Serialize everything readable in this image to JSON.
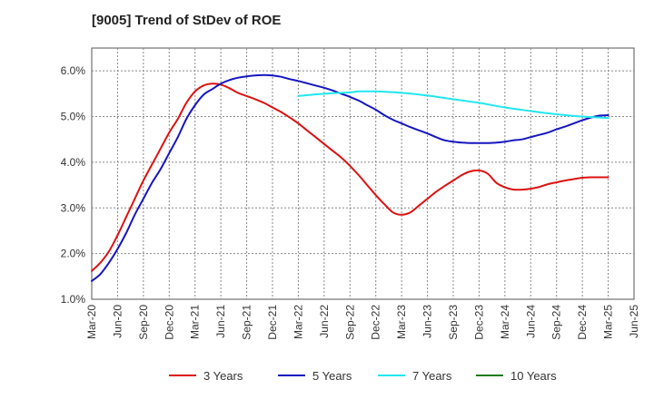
{
  "title": "[9005]  Trend of StDev of ROE",
  "chart_data": {
    "type": "line",
    "title": "[9005]  Trend of StDev of ROE",
    "xlabel": "",
    "ylabel": "",
    "x_ticks": [
      "Mar-20",
      "Jun-20",
      "Sep-20",
      "Dec-20",
      "Mar-21",
      "Jun-21",
      "Sep-21",
      "Dec-21",
      "Mar-22",
      "Jun-22",
      "Sep-22",
      "Dec-22",
      "Mar-23",
      "Jun-23",
      "Sep-23",
      "Dec-23",
      "Mar-24",
      "Jun-24",
      "Sep-24",
      "Dec-24",
      "Mar-25",
      "Jun-25"
    ],
    "y_ticks": [
      "1.0%",
      "2.0%",
      "3.0%",
      "4.0%",
      "5.0%",
      "6.0%"
    ],
    "ylim": [
      1.0,
      6.5
    ],
    "grid": true,
    "legend_position": "bottom",
    "series": [
      {
        "name": "3 Years",
        "color": "#dd1111",
        "points": [
          [
            "Mar-20",
            1.62
          ],
          [
            "Apr-20",
            1.8
          ],
          [
            "May-20",
            2.05
          ],
          [
            "Jun-20",
            2.4
          ],
          [
            "Jul-20",
            2.8
          ],
          [
            "Aug-20",
            3.2
          ],
          [
            "Sep-20",
            3.6
          ],
          [
            "Oct-20",
            3.95
          ],
          [
            "Nov-20",
            4.3
          ],
          [
            "Dec-20",
            4.65
          ],
          [
            "Jan-21",
            4.95
          ],
          [
            "Feb-21",
            5.3
          ],
          [
            "Mar-21",
            5.55
          ],
          [
            "Apr-21",
            5.68
          ],
          [
            "May-21",
            5.72
          ],
          [
            "Jun-21",
            5.7
          ],
          [
            "Jul-21",
            5.62
          ],
          [
            "Aug-21",
            5.52
          ],
          [
            "Sep-21",
            5.45
          ],
          [
            "Oct-21",
            5.38
          ],
          [
            "Nov-21",
            5.3
          ],
          [
            "Dec-21",
            5.2
          ],
          [
            "Jan-22",
            5.1
          ],
          [
            "Feb-22",
            4.98
          ],
          [
            "Mar-22",
            4.85
          ],
          [
            "Apr-22",
            4.7
          ],
          [
            "May-22",
            4.55
          ],
          [
            "Jun-22",
            4.4
          ],
          [
            "Jul-22",
            4.25
          ],
          [
            "Aug-22",
            4.1
          ],
          [
            "Sep-22",
            3.92
          ],
          [
            "Oct-22",
            3.72
          ],
          [
            "Nov-22",
            3.5
          ],
          [
            "Dec-22",
            3.28
          ],
          [
            "Jan-23",
            3.08
          ],
          [
            "Feb-23",
            2.9
          ],
          [
            "Mar-23",
            2.85
          ],
          [
            "Apr-23",
            2.9
          ],
          [
            "May-23",
            3.05
          ],
          [
            "Jun-23",
            3.2
          ],
          [
            "Jul-23",
            3.35
          ],
          [
            "Aug-23",
            3.48
          ],
          [
            "Sep-23",
            3.6
          ],
          [
            "Oct-23",
            3.72
          ],
          [
            "Nov-23",
            3.8
          ],
          [
            "Dec-23",
            3.82
          ],
          [
            "Jan-24",
            3.75
          ],
          [
            "Feb-24",
            3.55
          ],
          [
            "Mar-24",
            3.45
          ],
          [
            "Apr-24",
            3.4
          ],
          [
            "May-24",
            3.4
          ],
          [
            "Jun-24",
            3.42
          ],
          [
            "Jul-24",
            3.46
          ],
          [
            "Aug-24",
            3.52
          ],
          [
            "Sep-24",
            3.56
          ],
          [
            "Oct-24",
            3.6
          ],
          [
            "Nov-24",
            3.63
          ],
          [
            "Dec-24",
            3.66
          ],
          [
            "Jan-25",
            3.67
          ],
          [
            "Feb-25",
            3.67
          ],
          [
            "Mar-25",
            3.67
          ]
        ]
      },
      {
        "name": "5 Years",
        "color": "#1515c0",
        "points": [
          [
            "Mar-20",
            1.4
          ],
          [
            "Apr-20",
            1.55
          ],
          [
            "May-20",
            1.8
          ],
          [
            "Jun-20",
            2.1
          ],
          [
            "Jul-20",
            2.45
          ],
          [
            "Aug-20",
            2.85
          ],
          [
            "Sep-20",
            3.2
          ],
          [
            "Oct-20",
            3.55
          ],
          [
            "Nov-20",
            3.85
          ],
          [
            "Dec-20",
            4.2
          ],
          [
            "Jan-21",
            4.55
          ],
          [
            "Feb-21",
            4.95
          ],
          [
            "Mar-21",
            5.25
          ],
          [
            "Apr-21",
            5.48
          ],
          [
            "May-21",
            5.6
          ],
          [
            "Jun-21",
            5.72
          ],
          [
            "Jul-21",
            5.8
          ],
          [
            "Aug-21",
            5.85
          ],
          [
            "Sep-21",
            5.88
          ],
          [
            "Oct-21",
            5.9
          ],
          [
            "Nov-21",
            5.91
          ],
          [
            "Dec-21",
            5.9
          ],
          [
            "Jan-22",
            5.87
          ],
          [
            "Feb-22",
            5.82
          ],
          [
            "Mar-22",
            5.78
          ],
          [
            "Apr-22",
            5.73
          ],
          [
            "May-22",
            5.68
          ],
          [
            "Jun-22",
            5.63
          ],
          [
            "Jul-22",
            5.57
          ],
          [
            "Aug-22",
            5.5
          ],
          [
            "Sep-22",
            5.43
          ],
          [
            "Oct-22",
            5.35
          ],
          [
            "Nov-22",
            5.25
          ],
          [
            "Dec-22",
            5.15
          ],
          [
            "Jan-23",
            5.03
          ],
          [
            "Feb-23",
            4.93
          ],
          [
            "Mar-23",
            4.85
          ],
          [
            "Apr-23",
            4.77
          ],
          [
            "May-23",
            4.7
          ],
          [
            "Jun-23",
            4.63
          ],
          [
            "Jul-23",
            4.55
          ],
          [
            "Aug-23",
            4.48
          ],
          [
            "Sep-23",
            4.45
          ],
          [
            "Oct-23",
            4.43
          ],
          [
            "Nov-23",
            4.42
          ],
          [
            "Dec-23",
            4.42
          ],
          [
            "Jan-24",
            4.42
          ],
          [
            "Feb-24",
            4.43
          ],
          [
            "Mar-24",
            4.45
          ],
          [
            "Apr-24",
            4.48
          ],
          [
            "May-24",
            4.5
          ],
          [
            "Jun-24",
            4.55
          ],
          [
            "Jul-24",
            4.6
          ],
          [
            "Aug-24",
            4.65
          ],
          [
            "Sep-24",
            4.72
          ],
          [
            "Oct-24",
            4.78
          ],
          [
            "Nov-24",
            4.85
          ],
          [
            "Dec-24",
            4.92
          ],
          [
            "Jan-25",
            4.98
          ],
          [
            "Feb-25",
            5.02
          ],
          [
            "Mar-25",
            5.03
          ]
        ]
      },
      {
        "name": "7 Years",
        "color": "#22e6f0",
        "points": [
          [
            "Mar-22",
            5.45
          ],
          [
            "Jun-22",
            5.5
          ],
          [
            "Sep-22",
            5.53
          ],
          [
            "Oct-22",
            5.55
          ],
          [
            "Dec-22",
            5.55
          ],
          [
            "Mar-23",
            5.52
          ],
          [
            "Jun-23",
            5.46
          ],
          [
            "Sep-23",
            5.38
          ],
          [
            "Dec-23",
            5.3
          ],
          [
            "Mar-24",
            5.2
          ],
          [
            "Jun-24",
            5.12
          ],
          [
            "Sep-24",
            5.05
          ],
          [
            "Dec-24",
            5.0
          ],
          [
            "Mar-25",
            4.97
          ]
        ]
      },
      {
        "name": "10 Years",
        "color": "#1a7a1a",
        "points": []
      }
    ]
  }
}
